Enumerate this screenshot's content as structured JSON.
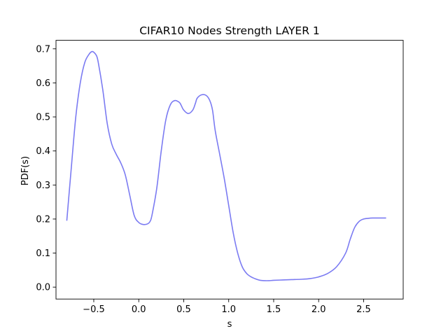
{
  "chart_data": {
    "type": "line",
    "title": "CIFAR10 Nodes Strength LAYER 1",
    "xlabel": "s",
    "ylabel": "PDF(s)",
    "xlim": [
      -0.92,
      2.94
    ],
    "ylim": [
      -0.035,
      0.725
    ],
    "xticks": [
      -0.5,
      0.0,
      0.5,
      1.0,
      1.5,
      2.0,
      2.5
    ],
    "xtick_labels": [
      "−0.5",
      "0.0",
      "0.5",
      "1.0",
      "1.5",
      "2.0",
      "2.5"
    ],
    "yticks": [
      0.0,
      0.1,
      0.2,
      0.3,
      0.4,
      0.5,
      0.6,
      0.7
    ],
    "ytick_labels": [
      "0.0",
      "0.1",
      "0.2",
      "0.3",
      "0.4",
      "0.5",
      "0.6",
      "0.7"
    ],
    "grid": false,
    "series": [
      {
        "color": "#7b7bf2",
        "x": [
          -0.8,
          -0.75,
          -0.7,
          -0.65,
          -0.6,
          -0.55,
          -0.52,
          -0.5,
          -0.47,
          -0.45,
          -0.4,
          -0.35,
          -0.3,
          -0.25,
          -0.2,
          -0.15,
          -0.1,
          -0.05,
          0.0,
          0.05,
          0.1,
          0.13,
          0.15,
          0.2,
          0.25,
          0.3,
          0.35,
          0.4,
          0.45,
          0.47,
          0.5,
          0.55,
          0.6,
          0.63,
          0.65,
          0.7,
          0.75,
          0.79,
          0.82,
          0.85,
          0.9,
          0.95,
          1.0,
          1.05,
          1.1,
          1.15,
          1.2,
          1.25,
          1.3,
          1.35,
          1.4,
          1.45,
          1.5,
          1.6,
          1.7,
          1.8,
          1.9,
          2.0,
          2.1,
          2.2,
          2.3,
          2.35,
          2.4,
          2.45,
          2.5,
          2.55,
          2.6,
          2.65,
          2.7,
          2.75
        ],
        "y": [
          0.195,
          0.35,
          0.5,
          0.6,
          0.66,
          0.685,
          0.692,
          0.69,
          0.68,
          0.66,
          0.58,
          0.48,
          0.42,
          0.39,
          0.365,
          0.33,
          0.27,
          0.21,
          0.19,
          0.184,
          0.186,
          0.195,
          0.215,
          0.29,
          0.4,
          0.49,
          0.535,
          0.548,
          0.543,
          0.535,
          0.52,
          0.51,
          0.52,
          0.54,
          0.555,
          0.565,
          0.563,
          0.548,
          0.52,
          0.46,
          0.39,
          0.32,
          0.24,
          0.16,
          0.1,
          0.06,
          0.04,
          0.03,
          0.024,
          0.02,
          0.019,
          0.019,
          0.02,
          0.021,
          0.022,
          0.023,
          0.025,
          0.03,
          0.04,
          0.06,
          0.1,
          0.14,
          0.175,
          0.193,
          0.2,
          0.202,
          0.203,
          0.203,
          0.203,
          0.203
        ]
      }
    ]
  }
}
